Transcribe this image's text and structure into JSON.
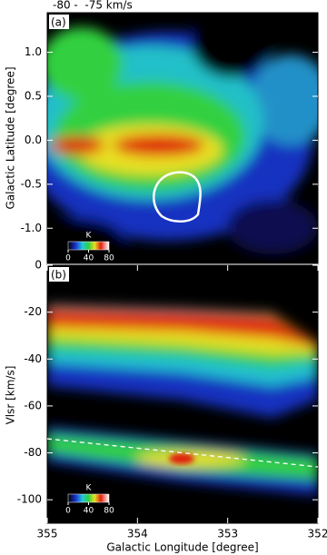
{
  "chart_data": [
    {
      "type": "heatmap",
      "title": "-80 -  -75 km/s",
      "panel_label": "(a)",
      "ylabel": "Galactic Latitude [degree]",
      "xlim": [
        355,
        352
      ],
      "ylim": [
        -1.4,
        1.45
      ],
      "yticks": [
        {
          "value": 1,
          "label": "1.0"
        },
        {
          "value": 0.5,
          "label": "0.5"
        },
        {
          "value": 0,
          "label": "0.0"
        },
        {
          "value": -0.5,
          "label": "-0.5"
        },
        {
          "value": -1,
          "label": "-1.0"
        }
      ],
      "colorbar": {
        "label": "K",
        "lim": [
          0,
          80
        ],
        "ticks": [
          0,
          40,
          80
        ]
      }
    },
    {
      "type": "heatmap",
      "panel_label": "(b)",
      "xlabel": "Galactic Longitude [degree]",
      "ylabel": "Vlsr [km/s]",
      "xlim": [
        355,
        352
      ],
      "ylim": [
        -110,
        0
      ],
      "xticks": [
        355,
        354,
        353,
        352
      ],
      "yticks": [
        0,
        -20,
        -40,
        -60,
        -80,
        -100
      ],
      "line": {
        "x": [
          355,
          352
        ],
        "y": [
          -74,
          -86
        ]
      },
      "colorbar": {
        "label": "K",
        "lim": [
          0,
          80
        ],
        "ticks": [
          0,
          40,
          80
        ]
      }
    }
  ]
}
